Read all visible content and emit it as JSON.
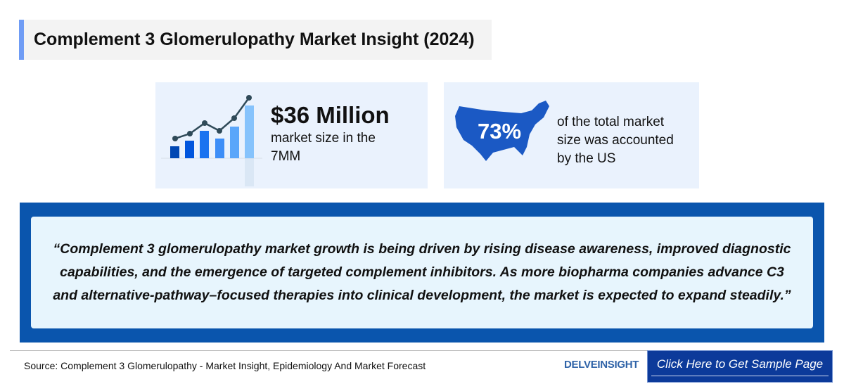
{
  "title": "Complement 3 Glomerulopathy Market Insight (2024)",
  "market_card": {
    "value": "$36 Million",
    "line1": "market size in the",
    "line2": "7MM",
    "icon": "bar-line-chart-icon"
  },
  "us_card": {
    "value": "73%",
    "line1": "of the total market",
    "line2": "size was accounted",
    "line3": "by the US",
    "icon": "us-map-icon"
  },
  "quote": "“Complement 3 glomerulopathy market growth is being driven by rising disease awareness, improved diagnostic capabilities, and the emergence of targeted complement inhibitors. As more biopharma companies advance C3 and alternative-pathway–focused therapies into clinical development, the market is expected to expand steadily.”",
  "source": "Source: Complement 3 Glomerulopathy - Market Insight, Epidemiology And Market Forecast",
  "logo": "DELVEINSIGHT",
  "cta": "Click Here to Get Sample Page",
  "colors": {
    "accent": "#6f9cf5",
    "quote_bg": "#0a55ad",
    "cta_bg": "#0c3a9a"
  }
}
